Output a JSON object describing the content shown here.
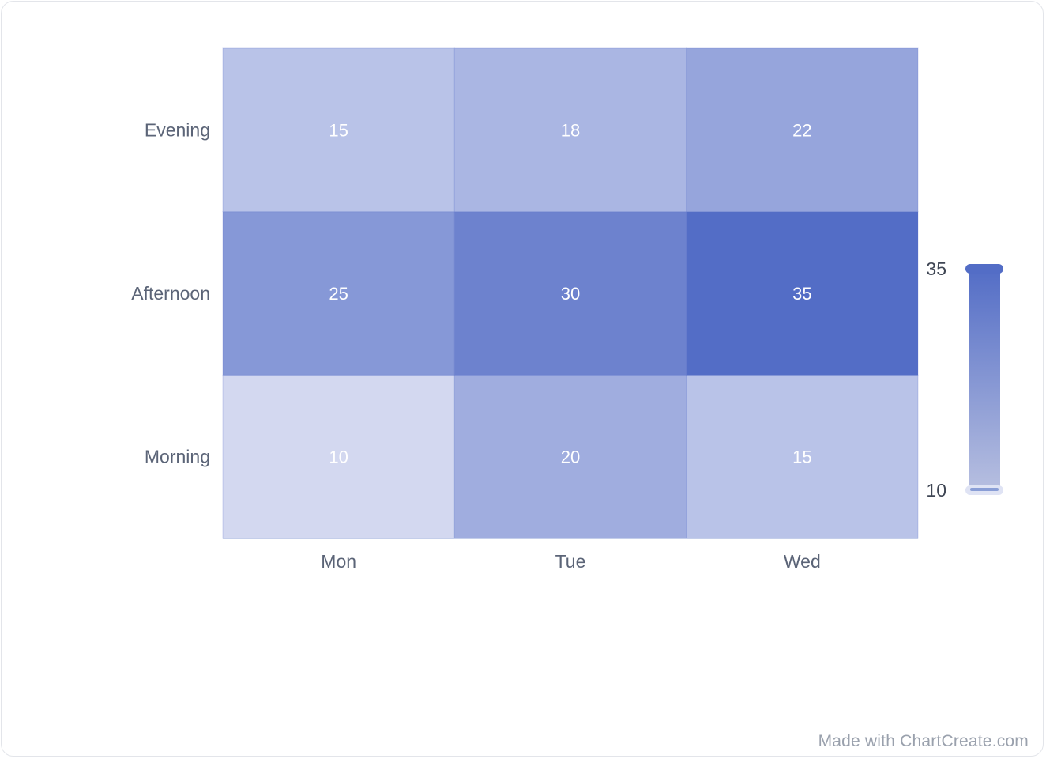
{
  "chart_data": {
    "type": "heatmap",
    "x_categories": [
      "Mon",
      "Tue",
      "Wed"
    ],
    "y_categories": [
      "Morning",
      "Afternoon",
      "Evening"
    ],
    "values": [
      [
        10,
        20,
        15
      ],
      [
        25,
        30,
        35
      ],
      [
        15,
        18,
        22
      ]
    ],
    "visual_map": {
      "min": 10,
      "max": 35
    },
    "colors": {
      "low": "#d3d8f0",
      "high": "#536dc6",
      "axis_text": "#5b6477",
      "cell_text": "#ffffff"
    }
  },
  "watermark": "Made with ChartCreate.com"
}
